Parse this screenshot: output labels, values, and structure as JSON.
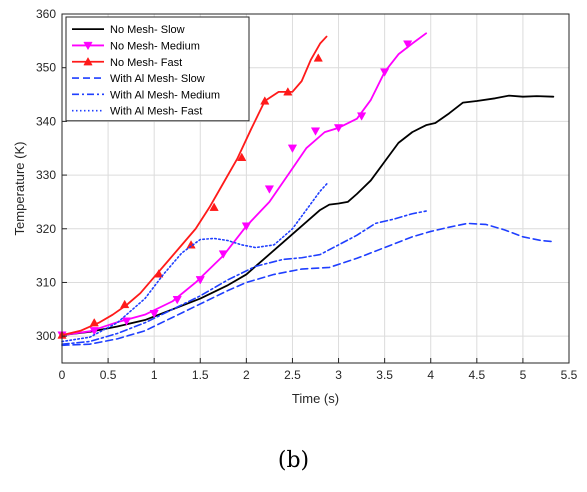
{
  "chart_data": {
    "type": "line",
    "xlabel": "Time (s)",
    "ylabel": "Temperature (K)",
    "xlim": [
      0,
      5.5
    ],
    "ylim": [
      295,
      360
    ],
    "xticks": [
      "0",
      "0.5",
      "1",
      "1.5",
      "2",
      "2.5",
      "3",
      "3.5",
      "4",
      "4.5",
      "5",
      "5.5"
    ],
    "yticks": [
      "300",
      "310",
      "320",
      "330",
      "340",
      "350",
      "360"
    ],
    "grid": true,
    "legend_position": "top-left",
    "series": [
      {
        "name": "No Mesh- Slow",
        "color": "#000000",
        "style": "solid",
        "marker": "none",
        "x": [
          0,
          0.3,
          0.6,
          0.9,
          1.2,
          1.5,
          1.8,
          2.0,
          2.2,
          2.4,
          2.6,
          2.8,
          2.9,
          3.0,
          3.1,
          3.2,
          3.35,
          3.5,
          3.65,
          3.8,
          3.95,
          4.05,
          4.2,
          4.35,
          4.5,
          4.7,
          4.85,
          5.0,
          5.15,
          5.33
        ],
        "y": [
          300.2,
          300.8,
          301.8,
          303.0,
          305.0,
          307.0,
          309.5,
          311.5,
          314.5,
          317.5,
          320.5,
          323.5,
          324.5,
          324.7,
          325.0,
          326.5,
          329.0,
          332.5,
          336.0,
          338.0,
          339.3,
          339.7,
          341.5,
          343.5,
          343.8,
          344.3,
          344.8,
          344.6,
          344.7,
          344.6
        ]
      },
      {
        "name": "No Mesh- Medium",
        "color": "#ff00ff",
        "style": "solid",
        "marker": "triangle-down",
        "x": [
          0,
          0.3,
          0.6,
          0.9,
          1.2,
          1.45,
          1.75,
          2.0,
          2.25,
          2.45,
          2.65,
          2.85,
          3.0,
          3.2,
          3.35,
          3.5,
          3.65,
          3.8,
          3.95
        ],
        "y": [
          300.2,
          300.9,
          302.6,
          304.0,
          306.5,
          310.0,
          315.0,
          320.5,
          325.0,
          330.0,
          335.0,
          338.0,
          338.8,
          340.5,
          344.0,
          349.2,
          352.5,
          354.5,
          356.4
        ],
        "marker_x": [
          0,
          0.35,
          0.7,
          1.0,
          1.25,
          1.5,
          1.75,
          2.0,
          2.25,
          2.5,
          2.75,
          3.0,
          3.25,
          3.5,
          3.75
        ],
        "marker_y": [
          300.2,
          301.0,
          302.8,
          304.2,
          306.8,
          310.5,
          315.3,
          320.5,
          327.4,
          335.0,
          338.2,
          338.8,
          341.0,
          349.2,
          354.4
        ]
      },
      {
        "name": "No Mesh- Fast",
        "color": "#ff1a1a",
        "style": "solid",
        "marker": "triangle-up",
        "x": [
          0,
          0.2,
          0.4,
          0.55,
          0.7,
          0.85,
          1.0,
          1.15,
          1.3,
          1.45,
          1.6,
          1.75,
          1.9,
          2.05,
          2.2,
          2.35,
          2.5,
          2.6,
          2.7,
          2.8,
          2.87
        ],
        "y": [
          300.2,
          301.0,
          302.5,
          304.0,
          305.8,
          308.0,
          311.0,
          314.0,
          317.0,
          320.0,
          324.0,
          328.5,
          333.0,
          338.5,
          343.8,
          345.5,
          345.5,
          347.5,
          351.5,
          354.5,
          355.8
        ],
        "marker_x": [
          0,
          0.35,
          0.68,
          1.05,
          1.4,
          1.65,
          1.95,
          2.2,
          2.45,
          2.78
        ],
        "marker_y": [
          300.2,
          302.5,
          305.9,
          311.6,
          317.0,
          324.0,
          333.3,
          343.8,
          345.5,
          351.8
        ]
      },
      {
        "name": "With Al Mesh- Slow",
        "color": "#1f3fff",
        "style": "dashed",
        "marker": "none",
        "x": [
          0,
          0.3,
          0.6,
          0.9,
          1.2,
          1.5,
          1.8,
          2.0,
          2.3,
          2.6,
          2.9,
          3.2,
          3.5,
          3.8,
          4.0,
          4.2,
          4.4,
          4.6,
          4.8,
          5.0,
          5.2,
          5.33
        ],
        "y": [
          298.3,
          298.5,
          299.5,
          301.0,
          303.5,
          306.0,
          308.5,
          310.0,
          311.5,
          312.5,
          312.8,
          314.5,
          316.5,
          318.5,
          319.5,
          320.3,
          321.0,
          320.8,
          319.8,
          318.5,
          317.8,
          317.6
        ]
      },
      {
        "name": "With Al Mesh- Medium",
        "color": "#1f3fff",
        "style": "dashdot",
        "marker": "none",
        "x": [
          0,
          0.3,
          0.6,
          0.9,
          1.2,
          1.5,
          1.8,
          2.1,
          2.4,
          2.6,
          2.8,
          3.0,
          3.2,
          3.4,
          3.6,
          3.8,
          3.95
        ],
        "y": [
          298.5,
          299.0,
          300.5,
          302.5,
          305.0,
          307.5,
          310.5,
          313.0,
          314.3,
          314.6,
          315.2,
          317.0,
          318.8,
          321.0,
          321.8,
          322.8,
          323.3
        ]
      },
      {
        "name": "With Al Mesh- Fast",
        "color": "#1f3fff",
        "style": "dotted",
        "marker": "none",
        "x": [
          0,
          0.3,
          0.6,
          0.9,
          1.1,
          1.3,
          1.5,
          1.65,
          1.8,
          1.95,
          2.1,
          2.3,
          2.5,
          2.65,
          2.8,
          2.88
        ],
        "y": [
          299.0,
          299.8,
          302.5,
          307.0,
          311.5,
          315.5,
          318.0,
          318.2,
          317.8,
          317.0,
          316.5,
          317.0,
          320.0,
          323.5,
          327.0,
          328.5
        ]
      }
    ]
  },
  "caption": "(b)"
}
